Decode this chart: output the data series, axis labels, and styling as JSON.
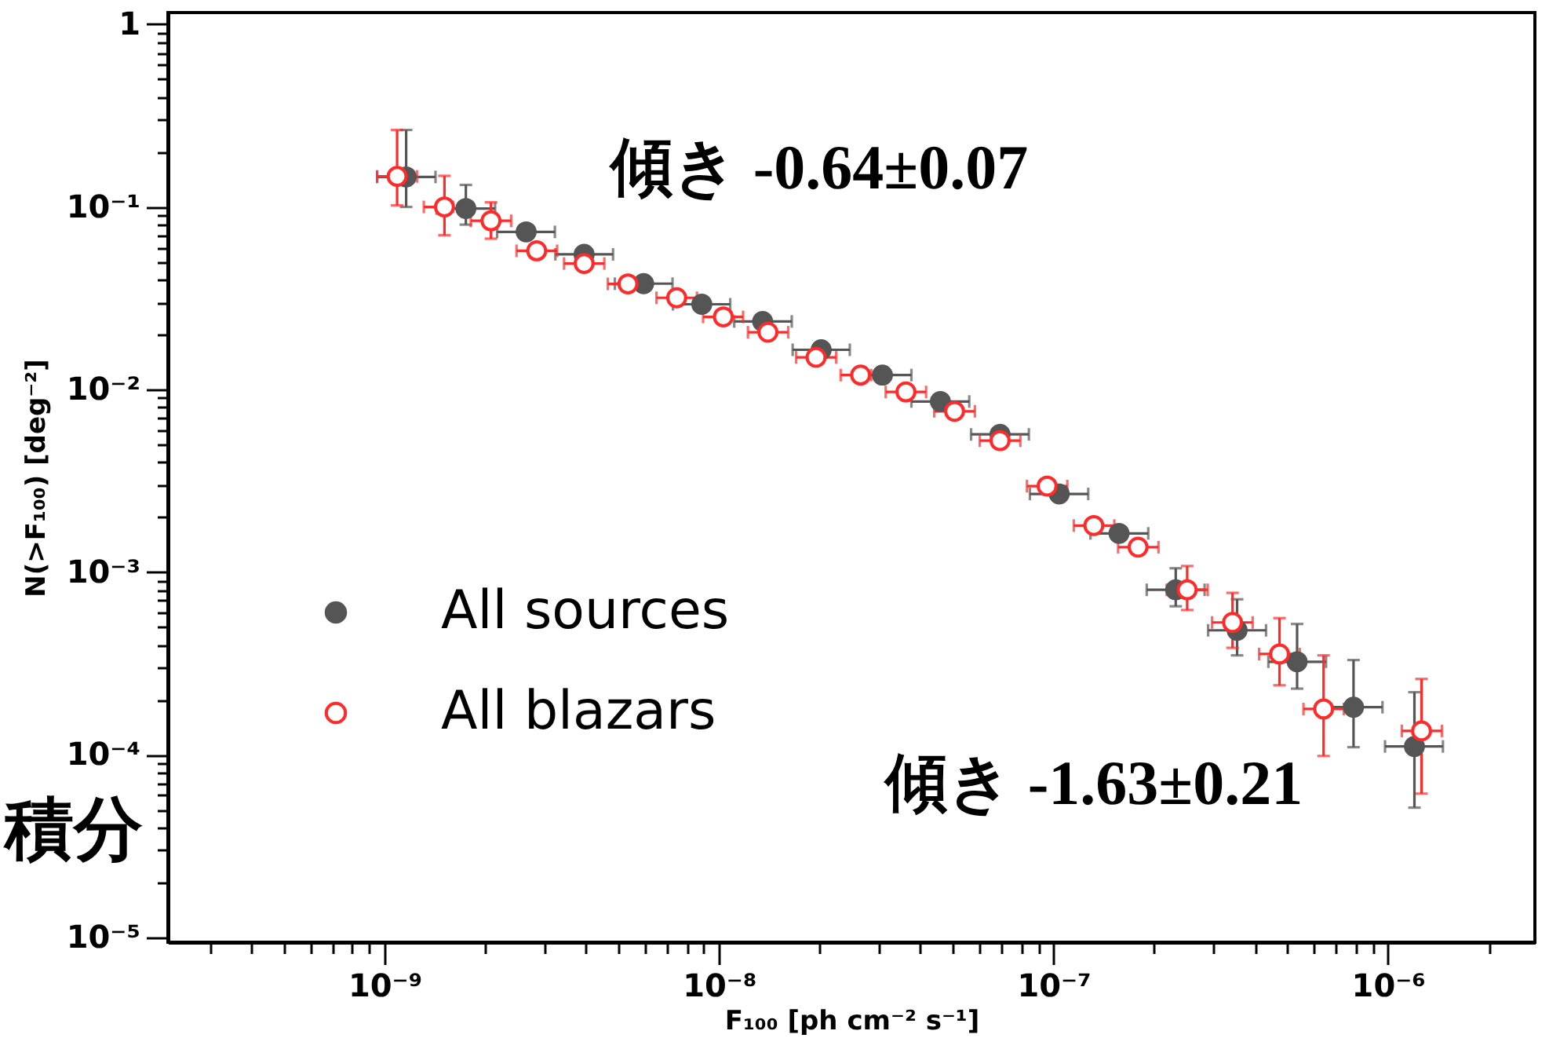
{
  "chart_data": {
    "type": "scatter",
    "xlabel": "F₁₀₀ [ph cm⁻² s⁻¹]",
    "ylabel": "N(>F₁₀₀) [deg⁻²]",
    "log": "xy",
    "grid": false,
    "legend": "bottom left",
    "marker": "circle",
    "xlim": [
      2.25e-10,
      2.75e-06
    ],
    "ylim": [
      9.4e-06,
      1.16
    ],
    "xticks": [
      {
        "value": 3e-10,
        "label": null
      },
      {
        "value": 4e-10,
        "label": null
      },
      {
        "value": 5e-10,
        "label": null
      },
      {
        "value": 6e-10,
        "label": null
      },
      {
        "value": 7e-10,
        "label": null
      },
      {
        "value": 8e-10,
        "label": null
      },
      {
        "value": 9e-10,
        "label": null
      },
      {
        "value": 1e-09,
        "label": "10⁻⁹"
      },
      {
        "value": 2e-09,
        "label": null
      },
      {
        "value": 3e-09,
        "label": null
      },
      {
        "value": 4e-09,
        "label": null
      },
      {
        "value": 5e-09,
        "label": null
      },
      {
        "value": 6e-09,
        "label": null
      },
      {
        "value": 7e-09,
        "label": null
      },
      {
        "value": 8e-09,
        "label": null
      },
      {
        "value": 9e-09,
        "label": null
      },
      {
        "value": 1e-08,
        "label": "10⁻⁸"
      },
      {
        "value": 2e-08,
        "label": null
      },
      {
        "value": 3e-08,
        "label": null
      },
      {
        "value": 4e-08,
        "label": null
      },
      {
        "value": 5e-08,
        "label": null
      },
      {
        "value": 6e-08,
        "label": null
      },
      {
        "value": 7e-08,
        "label": null
      },
      {
        "value": 8e-08,
        "label": null
      },
      {
        "value": 9e-08,
        "label": null
      },
      {
        "value": 1e-07,
        "label": "10⁻⁷"
      },
      {
        "value": 2e-07,
        "label": null
      },
      {
        "value": 3e-07,
        "label": null
      },
      {
        "value": 4e-07,
        "label": null
      },
      {
        "value": 5e-07,
        "label": null
      },
      {
        "value": 6e-07,
        "label": null
      },
      {
        "value": 7e-07,
        "label": null
      },
      {
        "value": 8e-07,
        "label": null
      },
      {
        "value": 9e-07,
        "label": null
      },
      {
        "value": 1e-06,
        "label": "10⁻⁶"
      },
      {
        "value": 2e-06,
        "label": null
      }
    ],
    "yticks": [
      {
        "value": 1e-05,
        "label": "10⁻⁵"
      },
      {
        "value": 2e-05,
        "label": null
      },
      {
        "value": 3e-05,
        "label": null
      },
      {
        "value": 4e-05,
        "label": null
      },
      {
        "value": 5e-05,
        "label": null
      },
      {
        "value": 6e-05,
        "label": null
      },
      {
        "value": 7e-05,
        "label": null
      },
      {
        "value": 8e-05,
        "label": null
      },
      {
        "value": 9e-05,
        "label": null
      },
      {
        "value": 0.0001,
        "label": "10⁻⁴"
      },
      {
        "value": 0.0002,
        "label": null
      },
      {
        "value": 0.0003,
        "label": null
      },
      {
        "value": 0.0004,
        "label": null
      },
      {
        "value": 0.0005,
        "label": null
      },
      {
        "value": 0.0006,
        "label": null
      },
      {
        "value": 0.0007,
        "label": null
      },
      {
        "value": 0.0008,
        "label": null
      },
      {
        "value": 0.0009,
        "label": null
      },
      {
        "value": 0.001,
        "label": "10⁻³"
      },
      {
        "value": 0.002,
        "label": null
      },
      {
        "value": 0.003,
        "label": null
      },
      {
        "value": 0.004,
        "label": null
      },
      {
        "value": 0.005,
        "label": null
      },
      {
        "value": 0.006,
        "label": null
      },
      {
        "value": 0.007,
        "label": null
      },
      {
        "value": 0.008,
        "label": null
      },
      {
        "value": 0.009,
        "label": null
      },
      {
        "value": 0.01,
        "label": "10⁻²"
      },
      {
        "value": 0.02,
        "label": null
      },
      {
        "value": 0.03,
        "label": null
      },
      {
        "value": 0.04,
        "label": null
      },
      {
        "value": 0.05,
        "label": null
      },
      {
        "value": 0.06,
        "label": null
      },
      {
        "value": 0.07,
        "label": null
      },
      {
        "value": 0.08,
        "label": null
      },
      {
        "value": 0.09,
        "label": null
      },
      {
        "value": 0.1,
        "label": "10⁻¹"
      },
      {
        "value": 0.2,
        "label": null
      },
      {
        "value": 0.3,
        "label": null
      },
      {
        "value": 0.4,
        "label": null
      },
      {
        "value": 0.5,
        "label": null
      },
      {
        "value": 0.6,
        "label": null
      },
      {
        "value": 0.7,
        "label": null
      },
      {
        "value": 0.8,
        "label": null
      },
      {
        "value": 0.9,
        "label": null
      },
      1
    ],
    "annotations": [
      "傾き -0.64±0.07",
      "傾き -1.63±0.21",
      "積分"
    ],
    "series": [
      {
        "name": "All sources",
        "color": "#555555",
        "x": [
          1.16e-09,
          1.75e-09,
          2.65e-09,
          3.95e-09,
          5.95e-09,
          8.88e-09,
          1.35e-08,
          2.02e-08,
          3.08e-08,
          4.59e-08,
          6.92e-08,
          1.04e-07,
          1.57e-07,
          2.32e-07,
          3.54e-07,
          5.35e-07,
          7.89e-07,
          1.2e-06
        ],
        "values": [
          0.146,
          0.098,
          0.073,
          0.055,
          0.038,
          0.0293,
          0.0236,
          0.0165,
          0.012,
          0.0086,
          0.00568,
          0.00268,
          0.00163,
          0.0008,
          0.00048,
          0.000323,
          0.000182,
          0.000111
        ],
        "errors": [
          [
            0.1,
            0.264
          ],
          [
            0.08,
            0.132
          ],
          null,
          null,
          null,
          null,
          null,
          null,
          null,
          null,
          null,
          null,
          null,
          [
            0.00065,
            0.00105
          ],
          [
            0.00035,
            0.00071
          ],
          [
            0.00023,
            0.00052
          ],
          [
            0.00011,
            0.00033
          ],
          [
            5.13e-05,
            0.00022
          ]
        ],
        "xerrors": [
          [
            9.5e-10,
            1.42e-09
          ],
          [
            1.43e-09,
            2.14e-09
          ],
          [
            2.17e-09,
            3.23e-09
          ],
          [
            3.24e-09,
            4.82e-09
          ],
          [
            4.88e-09,
            7.26e-09
          ],
          [
            7.28e-09,
            1.08e-08
          ],
          [
            1.11e-08,
            1.65e-08
          ],
          [
            1.66e-08,
            2.46e-08
          ],
          [
            2.53e-08,
            3.76e-08
          ],
          [
            3.76e-08,
            5.6e-08
          ],
          [
            5.67e-08,
            8.44e-08
          ],
          [
            8.5e-08,
            1.27e-07
          ],
          [
            1.29e-07,
            1.92e-07
          ],
          [
            1.9e-07,
            2.83e-07
          ],
          [
            2.9e-07,
            4.32e-07
          ],
          [
            4.39e-07,
            6.53e-07
          ],
          [
            6.47e-07,
            9.63e-07
          ],
          [
            9.8e-07,
            1.46e-06
          ]
        ]
      },
      {
        "name": "All blazars",
        "color": "#ff2a2a",
        "x": [
          1.09e-09,
          1.51e-09,
          2.08e-09,
          2.85e-09,
          3.95e-09,
          5.34e-09,
          7.47e-09,
          1.03e-08,
          1.4e-08,
          1.95e-08,
          2.65e-08,
          3.62e-08,
          5.06e-08,
          6.92e-08,
          9.57e-08,
          1.32e-07,
          1.79e-07,
          2.51e-07,
          3.43e-07,
          4.74e-07,
          6.42e-07,
          1.26e-06
        ],
        "values": [
          0.147,
          0.1,
          0.084,
          0.0575,
          0.049,
          0.0379,
          0.0318,
          0.025,
          0.0206,
          0.015,
          0.012,
          0.0097,
          0.0076,
          0.00525,
          0.00296,
          0.0018,
          0.00137,
          0.0008,
          0.00053,
          0.000356,
          0.000178,
          0.000135
        ],
        "errors": [
          [
            0.102,
            0.264
          ],
          [
            0.07,
            0.148
          ],
          [
            0.067,
            0.106
          ],
          null,
          null,
          null,
          null,
          null,
          null,
          null,
          null,
          null,
          null,
          null,
          null,
          null,
          null,
          [
            0.00062,
            0.00108
          ],
          [
            0.000385,
            0.00077
          ],
          [
            0.00024,
            0.00056
          ],
          [
            9.84e-05,
            0.00035
          ],
          [
            6.12e-05,
            0.00026
          ]
        ],
        "xerrors": [
          [
            9.5e-10,
            1.25e-09
          ],
          [
            1.31e-09,
            1.6e-09
          ],
          [
            1.81e-09,
            2.39e-09
          ],
          [
            2.48e-09,
            3.28e-09
          ],
          [
            3.44e-09,
            4.54e-09
          ],
          [
            4.65e-09,
            6.14e-09
          ],
          [
            6.5e-09,
            8.59e-09
          ],
          [
            8.96e-09,
            1.18e-08
          ],
          [
            1.22e-08,
            1.61e-08
          ],
          [
            1.7e-08,
            2.24e-08
          ],
          [
            2.31e-08,
            2.85e-08
          ],
          [
            3.15e-08,
            4.16e-08
          ],
          [
            4.4e-08,
            5.82e-08
          ],
          [
            6.02e-08,
            7.96e-08
          ],
          [
            8.33e-08,
            1.1e-07
          ],
          [
            1.15e-07,
            1.52e-07
          ],
          [
            1.56e-07,
            2.06e-07
          ],
          [
            2.18e-07,
            2.89e-07
          ],
          [
            2.98e-07,
            3.94e-07
          ],
          [
            4.12e-07,
            5.45e-07
          ],
          [
            5.59e-07,
            7.38e-07
          ],
          [
            1.1e-06,
            1.45e-06
          ]
        ]
      }
    ]
  }
}
